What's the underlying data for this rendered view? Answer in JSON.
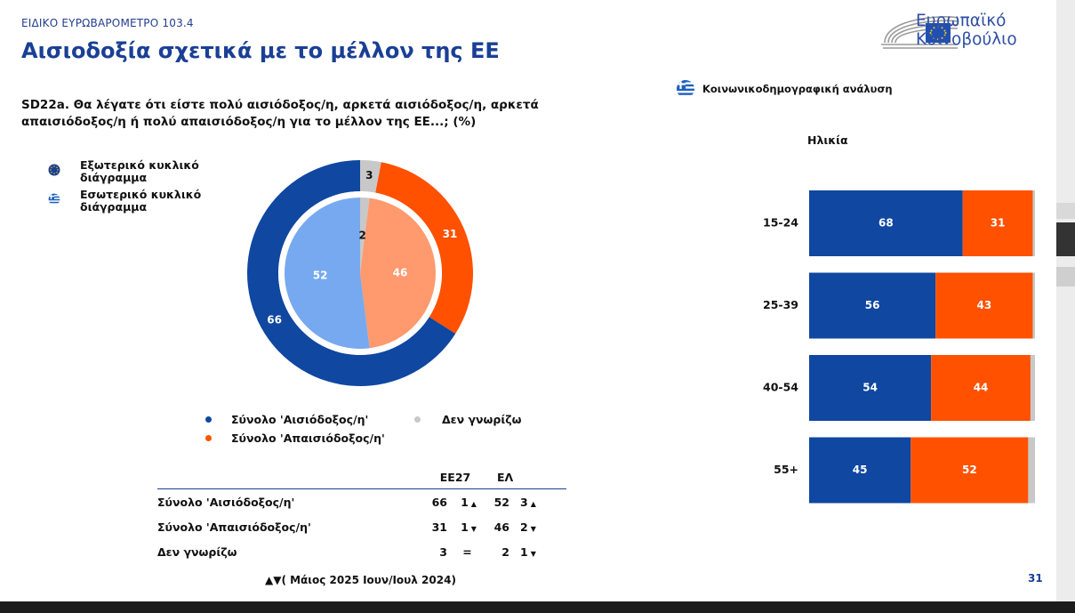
{
  "header": {
    "survey_label": "ΕΙΔΙΚΟ ΕΥΡΩΒΑΡΟΜΕΤΡΟ 103.4",
    "title": "Αισιοδοξία σχετικά με το μέλλον της ΕΕ",
    "question_line1": "SD22a. Θα λέγατε ότι είστε πολύ αισιόδοξος/η, αρκετά αισιόδοξος/η, αρκετά",
    "question_line2": "απαισιόδοξος/η ή πολύ απαισιόδοξος/η για το μέλλον της ΕΕ...; (%)"
  },
  "logo": {
    "line1": "Ευρωπαϊκό",
    "line2": "Κοινοβούλιο",
    "icon": "european-parliament-logo"
  },
  "ring_legend": {
    "outer_line1": "Εξωτερικό κυκλικό",
    "outer_line2": "διάγραμμα",
    "inner_line1": "Εσωτερικό κυκλικό",
    "inner_line2": "διάγραμμα",
    "outer_icon": "eu-flag-icon",
    "inner_icon": "greece-flag-icon"
  },
  "colors": {
    "optimistic": "#0f47a1",
    "pessimistic": "#ff5100",
    "dont_know": "#c8c8c8",
    "optimistic_inner": "#76a9f0",
    "pessimistic_inner": "#ff9a6e",
    "dont_know_inner": "#c8c8c8",
    "title": "#1a3f95"
  },
  "socio": {
    "label": "Κοινωνικοδημογραφική ανάλυση",
    "icon": "greece-flag-icon",
    "age_title": "Ηλικία"
  },
  "chart_data": [
    {
      "type": "pie",
      "ring": "outer",
      "country": "EE27",
      "categories": [
        "Σύνολο 'Αισιόδοξος/η'",
        "Σύνολο 'Απαισιόδοξος/η'",
        "Δεν γνωρίζω"
      ],
      "values": [
        66,
        31,
        3
      ]
    },
    {
      "type": "pie",
      "ring": "inner",
      "country": "ΕΛ",
      "categories": [
        "Σύνολο 'Αισιόδοξος/η'",
        "Σύνολο 'Απαισιόδοξος/η'",
        "Δεν γνωρίζω"
      ],
      "values": [
        52,
        46,
        2
      ]
    },
    {
      "type": "bar",
      "orientation": "horizontal-stacked",
      "title": "Ηλικία",
      "categories": [
        "15-24",
        "25-39",
        "40-54",
        "55+"
      ],
      "series": [
        {
          "values": [
            68,
            56,
            54,
            45
          ]
        },
        {
          "values": [
            31,
            43,
            44,
            52
          ]
        },
        {
          "values": [
            1,
            1,
            2,
            3
          ]
        }
      ],
      "xlim": [
        0,
        100
      ]
    }
  ],
  "legend": {
    "optimistic": "Σύνολο 'Αισιόδοξος/η'",
    "pessimistic": "Σύνολο 'Απαισιόδοξος/η'",
    "dont_know": "Δεν γνωρίζω"
  },
  "table": {
    "headers": [
      "ΕΕ27",
      "ΕΛ"
    ],
    "rows": [
      {
        "label": "Σύνολο 'Αισιόδοξος/η'",
        "eu": "66",
        "eu_change": "1",
        "eu_arrow": "▲",
        "gr": "52",
        "gr_change": "3",
        "gr_arrow": "▲"
      },
      {
        "label": "Σύνολο 'Απαισιόδοξος/η'",
        "eu": "31",
        "eu_change": "1",
        "eu_arrow": "▼",
        "gr": "46",
        "gr_change": "2",
        "gr_arrow": "▼"
      },
      {
        "label": "Δεν γνωρίζω",
        "eu": "3",
        "eu_change": "=",
        "eu_arrow": "",
        "gr": "2",
        "gr_change": "1",
        "gr_arrow": "▼"
      }
    ],
    "note": "▲▼( Μάιος 2025 Ιουν/Ιουλ 2024)"
  },
  "page_number": "31"
}
